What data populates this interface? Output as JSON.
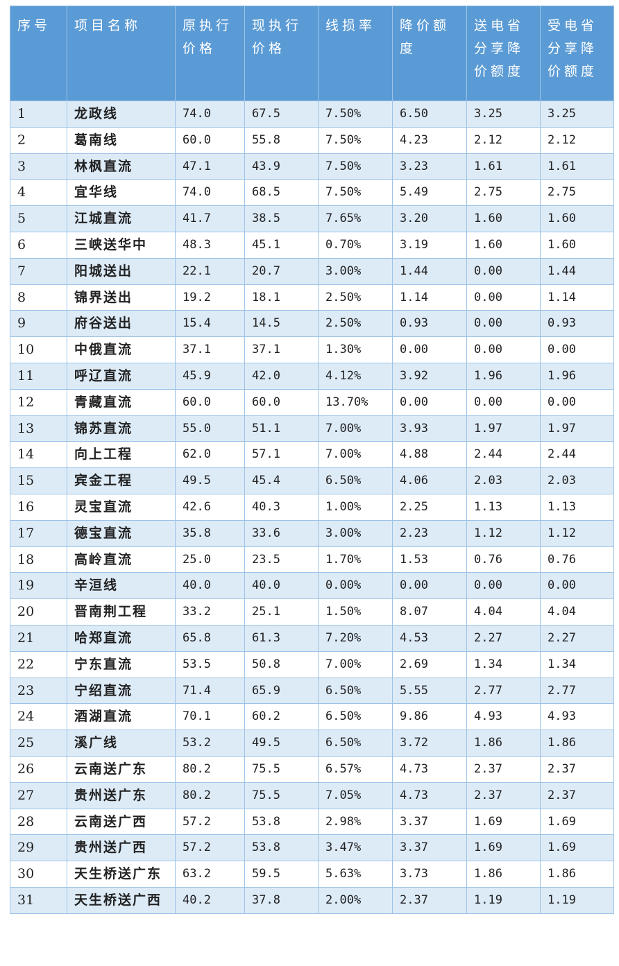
{
  "table": {
    "header": [
      "序号",
      "项目名称",
      "原执行价格",
      "现执行价格",
      "线损率",
      "降价额度",
      "送电省分享降价额度",
      "受电省分享降价额度"
    ],
    "rows": [
      [
        "1",
        "龙政线",
        "74.0",
        "67.5",
        "7.50%",
        "6.50",
        "3.25",
        "3.25"
      ],
      [
        "2",
        "葛南线",
        "60.0",
        "55.8",
        "7.50%",
        "4.23",
        "2.12",
        "2.12"
      ],
      [
        "3",
        "林枫直流",
        "47.1",
        "43.9",
        "7.50%",
        "3.23",
        "1.61",
        "1.61"
      ],
      [
        "4",
        "宜华线",
        "74.0",
        "68.5",
        "7.50%",
        "5.49",
        "2.75",
        "2.75"
      ],
      [
        "5",
        "江城直流",
        "41.7",
        "38.5",
        "7.65%",
        "3.20",
        "1.60",
        "1.60"
      ],
      [
        "6",
        "三峡送华中",
        "48.3",
        "45.1",
        "0.70%",
        "3.19",
        "1.60",
        "1.60"
      ],
      [
        "7",
        "阳城送出",
        "22.1",
        "20.7",
        "3.00%",
        "1.44",
        "0.00",
        "1.44"
      ],
      [
        "8",
        "锦界送出",
        "19.2",
        "18.1",
        "2.50%",
        "1.14",
        "0.00",
        "1.14"
      ],
      [
        "9",
        "府谷送出",
        "15.4",
        "14.5",
        "2.50%",
        "0.93",
        "0.00",
        "0.93"
      ],
      [
        "10",
        "中俄直流",
        "37.1",
        "37.1",
        "1.30%",
        "0.00",
        "0.00",
        "0.00"
      ],
      [
        "11",
        "呼辽直流",
        "45.9",
        "42.0",
        "4.12%",
        "3.92",
        "1.96",
        "1.96"
      ],
      [
        "12",
        "青藏直流",
        "60.0",
        "60.0",
        "13.70%",
        "0.00",
        "0.00",
        "0.00"
      ],
      [
        "13",
        "锦苏直流",
        "55.0",
        "51.1",
        "7.00%",
        "3.93",
        "1.97",
        "1.97"
      ],
      [
        "14",
        "向上工程",
        "62.0",
        "57.1",
        "7.00%",
        "4.88",
        "2.44",
        "2.44"
      ],
      [
        "15",
        "宾金工程",
        "49.5",
        "45.4",
        "6.50%",
        "4.06",
        "2.03",
        "2.03"
      ],
      [
        "16",
        "灵宝直流",
        "42.6",
        "40.3",
        "1.00%",
        "2.25",
        "1.13",
        "1.13"
      ],
      [
        "17",
        "德宝直流",
        "35.8",
        "33.6",
        "3.00%",
        "2.23",
        "1.12",
        "1.12"
      ],
      [
        "18",
        "高岭直流",
        "25.0",
        "23.5",
        "1.70%",
        "1.53",
        "0.76",
        "0.76"
      ],
      [
        "19",
        "辛洹线",
        "40.0",
        "40.0",
        "0.00%",
        "0.00",
        "0.00",
        "0.00"
      ],
      [
        "20",
        "晋南荆工程",
        "33.2",
        "25.1",
        "1.50%",
        "8.07",
        "4.04",
        "4.04"
      ],
      [
        "21",
        "哈郑直流",
        "65.8",
        "61.3",
        "7.20%",
        "4.53",
        "2.27",
        "2.27"
      ],
      [
        "22",
        "宁东直流",
        "53.5",
        "50.8",
        "7.00%",
        "2.69",
        "1.34",
        "1.34"
      ],
      [
        "23",
        "宁绍直流",
        "71.4",
        "65.9",
        "6.50%",
        "5.55",
        "2.77",
        "2.77"
      ],
      [
        "24",
        "酒湖直流",
        "70.1",
        "60.2",
        "6.50%",
        "9.86",
        "4.93",
        "4.93"
      ],
      [
        "25",
        "溪广线",
        "53.2",
        "49.5",
        "6.50%",
        "3.72",
        "1.86",
        "1.86"
      ],
      [
        "26",
        "云南送广东",
        "80.2",
        "75.5",
        "6.57%",
        "4.73",
        "2.37",
        "2.37"
      ],
      [
        "27",
        "贵州送广东",
        "80.2",
        "75.5",
        "7.05%",
        "4.73",
        "2.37",
        "2.37"
      ],
      [
        "28",
        "云南送广西",
        "57.2",
        "53.8",
        "2.98%",
        "3.37",
        "1.69",
        "1.69"
      ],
      [
        "29",
        "贵州送广西",
        "57.2",
        "53.8",
        "3.47%",
        "3.37",
        "1.69",
        "1.69"
      ],
      [
        "30",
        "天生桥送广东",
        "63.2",
        "59.5",
        "5.63%",
        "3.73",
        "1.86",
        "1.86"
      ],
      [
        "31",
        "天生桥送广西",
        "40.2",
        "37.8",
        "2.00%",
        "2.37",
        "1.19",
        "1.19"
      ]
    ]
  }
}
